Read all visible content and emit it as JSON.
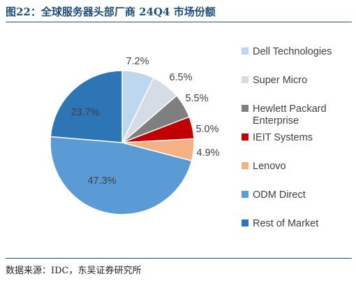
{
  "figure": {
    "title": "图22：全球服务器头部厂商 24Q4 市场份额",
    "source": "数据来源：IDC，东吴证券研究所"
  },
  "chart_data": {
    "type": "pie",
    "unit": "%",
    "legend_position": "right",
    "slices": [
      {
        "name": "Dell Technologies",
        "value": 7.2,
        "label": "7.2%",
        "color": "#bdd7ee"
      },
      {
        "name": "Super Micro",
        "value": 6.5,
        "label": "6.5%",
        "color": "#d6dce5"
      },
      {
        "name": "Hewlett Packard Enterprise",
        "value": 5.5,
        "label": "5.5%",
        "color": "#7f7f7f",
        "legend_lines": [
          "Hewlett Packard",
          "Enterprise"
        ]
      },
      {
        "name": "IEIT Systems",
        "value": 5.0,
        "label": "5.0%",
        "color": "#c00000"
      },
      {
        "name": "Lenovo",
        "value": 4.9,
        "label": "4.9%",
        "color": "#f4b183"
      },
      {
        "name": "ODM Direct",
        "value": 47.3,
        "label": "47.3%",
        "color": "#5b9bd5"
      },
      {
        "name": "Rest of Market",
        "value": 23.7,
        "label": "23.7%",
        "color": "#2e75b6"
      }
    ]
  }
}
